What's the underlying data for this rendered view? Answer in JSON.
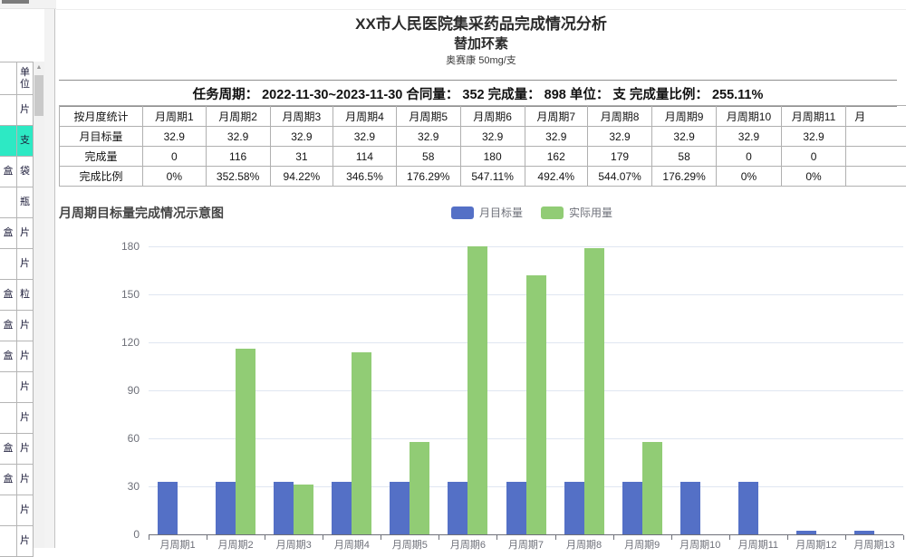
{
  "sidebar": {
    "header": {
      "col2": "单位"
    },
    "selected_color": "#2de9c4",
    "rows": [
      {
        "c1": "",
        "c2": "片",
        "selected": false
      },
      {
        "c1": "",
        "c2": "支",
        "selected": true
      },
      {
        "c1": "盒",
        "c2": "袋",
        "selected": false
      },
      {
        "c1": "",
        "c2": "瓶",
        "selected": false
      },
      {
        "c1": "盒",
        "c2": "片",
        "selected": false
      },
      {
        "c1": "",
        "c2": "片",
        "selected": false
      },
      {
        "c1": "盒",
        "c2": "粒",
        "selected": false
      },
      {
        "c1": "盒",
        "c2": "片",
        "selected": false
      },
      {
        "c1": "盒",
        "c2": "片",
        "selected": false
      },
      {
        "c1": "",
        "c2": "片",
        "selected": false
      },
      {
        "c1": "",
        "c2": "片",
        "selected": false
      },
      {
        "c1": "盒",
        "c2": "片",
        "selected": false
      },
      {
        "c1": "盒",
        "c2": "片",
        "selected": false
      },
      {
        "c1": "",
        "c2": "片",
        "selected": false
      },
      {
        "c1": "",
        "c2": "片",
        "selected": false
      }
    ]
  },
  "header": {
    "title": "XX市人民医院集采药品完成情况分析",
    "subtitle": "替加环素",
    "spec": "奥赛康 50mg/支",
    "summary": "任务周期： 2022-11-30~2023-11-30 合同量： 352 完成量： 898 单位： 支 完成量比例： 255.11%"
  },
  "table": {
    "corner_label": "按月度统计",
    "columns": [
      "月周期1",
      "月周期2",
      "月周期3",
      "月周期4",
      "月周期5",
      "月周期6",
      "月周期7",
      "月周期8",
      "月周期9",
      "月周期10",
      "月周期11"
    ],
    "overflow_column": "月",
    "rows": [
      {
        "label": "月目标量",
        "values": [
          "32.9",
          "32.9",
          "32.9",
          "32.9",
          "32.9",
          "32.9",
          "32.9",
          "32.9",
          "32.9",
          "32.9",
          "32.9"
        ]
      },
      {
        "label": "完成量",
        "values": [
          "0",
          "116",
          "31",
          "114",
          "58",
          "180",
          "162",
          "179",
          "58",
          "0",
          "0"
        ]
      },
      {
        "label": "完成比例",
        "values": [
          "0%",
          "352.58%",
          "94.22%",
          "346.5%",
          "176.29%",
          "547.11%",
          "492.4%",
          "544.07%",
          "176.29%",
          "0%",
          "0%"
        ]
      }
    ]
  },
  "chart": {
    "title": "月周期目标量完成情况示意图",
    "legend": [
      {
        "label": "月目标量",
        "color": "#5470c6"
      },
      {
        "label": "实际用量",
        "color": "#91cc75"
      }
    ]
  },
  "chart_data": {
    "type": "bar",
    "title": "月周期目标量完成情况示意图",
    "categories": [
      "月周期1",
      "月周期2",
      "月周期3",
      "月周期4",
      "月周期5",
      "月周期6",
      "月周期7",
      "月周期8",
      "月周期9",
      "月周期10",
      "月周期11",
      "月周期12",
      "月周期13"
    ],
    "series": [
      {
        "name": "月目标量",
        "color": "#5470c6",
        "values": [
          32.9,
          32.9,
          32.9,
          32.9,
          32.9,
          32.9,
          32.9,
          32.9,
          32.9,
          32.9,
          32.9,
          2,
          2
        ]
      },
      {
        "name": "实际用量",
        "color": "#91cc75",
        "values": [
          0,
          116,
          31,
          114,
          58,
          180,
          162,
          179,
          58,
          0,
          0,
          0,
          0
        ]
      }
    ],
    "ylim": [
      0,
      180
    ],
    "yticks": [
      0,
      30,
      60,
      90,
      120,
      150,
      180
    ],
    "grid": true,
    "legend_position": "top-center"
  }
}
